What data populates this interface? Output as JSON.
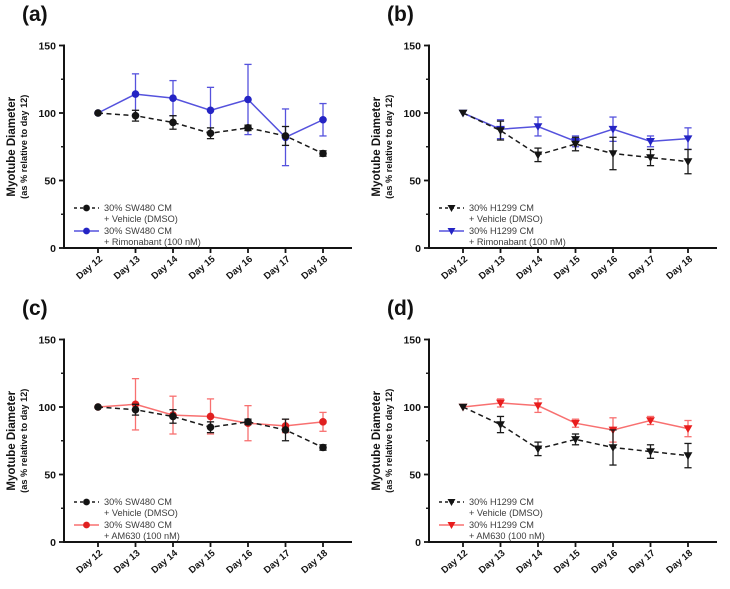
{
  "figure": {
    "background": "#ffffff",
    "axis_color": "#141414",
    "legend_text_color": "#3c3c3c",
    "y_tick_labels": [
      "0",
      "50",
      "100",
      "150"
    ]
  },
  "chart_data": [
    {
      "type": "line",
      "panel": "(a)",
      "x": [
        "Day 12",
        "Day 13",
        "Day 14",
        "Day 15",
        "Day 16",
        "Day 17",
        "Day 18"
      ],
      "ylabel": "Myotube Diameter",
      "ylabel2": "(as % relative to day 12)",
      "ylim": [
        0,
        150
      ],
      "yticks": [
        0,
        50,
        100,
        150
      ],
      "yticks_minor": [
        25,
        75,
        125
      ],
      "legend_position": "bottom-left-inside",
      "series": [
        {
          "name": "30% SW480 CM + Vehicle (DMSO)",
          "legend_lines": [
            "30% SW480 CM",
            "+ Vehicle (DMSO)"
          ],
          "marker": "circle",
          "line_style": "dashed",
          "line_color": "#1a1a1a",
          "marker_color": "#141414",
          "values": [
            100,
            98,
            93,
            85,
            89,
            83,
            70
          ],
          "errors": [
            0,
            4,
            5,
            4,
            2,
            7,
            2
          ]
        },
        {
          "name": "30% SW480 CM + Rimonabant (100 nM)",
          "legend_lines": [
            "30% SW480 CM",
            "+ Rimonabant (100 nM)"
          ],
          "marker": "circle",
          "line_style": "solid",
          "line_color": "#5552dd",
          "marker_color": "#2424c4",
          "values": [
            100,
            114,
            111,
            102,
            110,
            82,
            95
          ],
          "errors": [
            0,
            15,
            13,
            17,
            26,
            21,
            12
          ]
        }
      ]
    },
    {
      "type": "line",
      "panel": "(b)",
      "x": [
        "Day 12",
        "Day 13",
        "Day 14",
        "Day 15",
        "Day 16",
        "Day 17",
        "Day 18"
      ],
      "ylabel": "Myotube Diameter",
      "ylabel2": "(as % relative to day 12)",
      "ylim": [
        0,
        150
      ],
      "yticks": [
        0,
        50,
        100,
        150
      ],
      "yticks_minor": [
        25,
        75,
        125
      ],
      "legend_position": "bottom-left-inside",
      "series": [
        {
          "name": "30% H1299 CM + Vehicle (DMSO)",
          "legend_lines": [
            "30% H1299 CM",
            "+ Vehicle (DMSO)"
          ],
          "marker": "triangle-down",
          "line_style": "dashed",
          "line_color": "#1a1a1a",
          "marker_color": "#141414",
          "values": [
            100,
            87,
            69,
            77,
            70,
            67,
            64
          ],
          "errors": [
            0,
            7,
            5,
            5,
            12,
            6,
            9
          ]
        },
        {
          "name": "30% H1299 CM + Rimonabant (100 nM)",
          "legend_lines": [
            "30% H1299 CM",
            "+ Rimonabant (100 nM)"
          ],
          "marker": "triangle-down",
          "line_style": "solid",
          "line_color": "#5552dd",
          "marker_color": "#2424c4",
          "values": [
            100,
            88,
            90,
            79,
            88,
            79,
            81
          ],
          "errors": [
            0,
            7,
            7,
            4,
            9,
            4,
            8
          ]
        }
      ]
    },
    {
      "type": "line",
      "panel": "(c)",
      "x": [
        "Day 12",
        "Day 13",
        "Day 14",
        "Day 15",
        "Day 16",
        "Day 17",
        "Day 18"
      ],
      "ylabel": "Myotube Diameter",
      "ylabel2": "(as % relative to day 12)",
      "ylim": [
        0,
        150
      ],
      "yticks": [
        0,
        50,
        100,
        150
      ],
      "yticks_minor": [
        25,
        75,
        125
      ],
      "legend_position": "bottom-left-inside",
      "series": [
        {
          "name": "30% SW480 CM + Vehicle (DMSO)",
          "legend_lines": [
            "30% SW480 CM",
            "+ Vehicle (DMSO)"
          ],
          "marker": "circle",
          "line_style": "dashed",
          "line_color": "#1a1a1a",
          "marker_color": "#141414",
          "values": [
            100,
            98,
            93,
            85,
            89,
            83,
            70
          ],
          "errors": [
            0,
            4,
            5,
            4,
            2,
            8,
            2
          ]
        },
        {
          "name": "30% SW480 CM + AM630 (100 nM)",
          "legend_lines": [
            "30% SW480 CM",
            "+ AM630 (100 nM)"
          ],
          "marker": "circle",
          "line_style": "solid",
          "line_color": "#f87070",
          "marker_color": "#e02020",
          "values": [
            100,
            102,
            94,
            93,
            88,
            86,
            89
          ],
          "errors": [
            0,
            19,
            14,
            13,
            13,
            5,
            7
          ]
        }
      ]
    },
    {
      "type": "line",
      "panel": "(d)",
      "x": [
        "Day 12",
        "Day 13",
        "Day 14",
        "Day 15",
        "Day 16",
        "Day 17",
        "Day 18"
      ],
      "ylabel": "Myotube Diameter",
      "ylabel2": "(as % relative to day 12)",
      "ylim": [
        0,
        150
      ],
      "yticks": [
        0,
        50,
        100,
        150
      ],
      "yticks_minor": [
        25,
        75,
        125
      ],
      "legend_position": "bottom-left-inside",
      "series": [
        {
          "name": "30% H1299 CM + Vehicle (DMSO)",
          "legend_lines": [
            "30% H1299 CM",
            "+ Vehicle (DMSO)"
          ],
          "marker": "triangle-down",
          "line_style": "dashed",
          "line_color": "#1a1a1a",
          "marker_color": "#141414",
          "values": [
            100,
            87,
            69,
            76,
            70,
            67,
            64
          ],
          "errors": [
            0,
            6,
            5,
            4,
            13,
            5,
            9
          ]
        },
        {
          "name": "30% H1299 CM + AM630 (100 nM)",
          "legend_lines": [
            "30% H1299 CM",
            "+ AM630 (100 nM)"
          ],
          "marker": "triangle-down",
          "line_style": "solid",
          "line_color": "#f87070",
          "marker_color": "#e81c1c",
          "values": [
            100,
            103,
            101,
            88,
            83,
            90,
            84
          ],
          "errors": [
            0,
            3,
            5,
            3,
            9,
            3,
            6
          ]
        }
      ]
    }
  ]
}
